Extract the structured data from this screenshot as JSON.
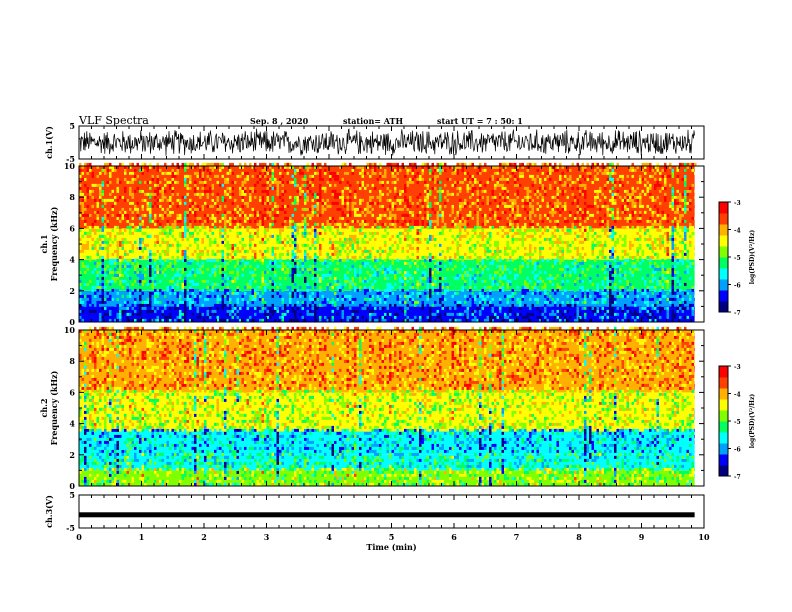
{
  "header": {
    "title": "VLF Spectra",
    "date": "Sep. 8 , 2020",
    "station": "station= ATH",
    "start": "start UT = 7 : 50: 1"
  },
  "chart_data": [
    {
      "type": "line",
      "panel": "ch1-waveform",
      "ylabel": "ch.1(V)",
      "ylim": [
        -5,
        5
      ],
      "yticks": [
        "5",
        "-5"
      ],
      "xlim": [
        0,
        10
      ],
      "description_values": "broadband noise waveform, amplitude about ±3 V"
    },
    {
      "type": "heatmap",
      "panel": "ch1-spectrogram",
      "ylabel_line1": "ch.1",
      "ylabel_line2": "Frequency (kHz)",
      "ylim": [
        0,
        10
      ],
      "yticks": [
        "0",
        "2",
        "4",
        "6",
        "8",
        "10"
      ],
      "xlim": [
        0,
        10
      ],
      "colorbar": {
        "label": "log(PSD)(V²/Hz)",
        "range": [
          -7,
          -3
        ],
        "ticks": [
          "-3",
          "-4",
          "-5",
          "-6",
          "-7"
        ]
      },
      "bands_khz_log_psd": [
        {
          "from": 0,
          "to": 1,
          "value": -6.3
        },
        {
          "from": 1,
          "to": 2,
          "value": -5.9
        },
        {
          "from": 2,
          "to": 4,
          "value": -5.3
        },
        {
          "from": 4,
          "to": 6,
          "value": -4.5
        },
        {
          "from": 6,
          "to": 10,
          "value": -3.8
        }
      ]
    },
    {
      "type": "heatmap",
      "panel": "ch2-spectrogram",
      "ylabel_line1": "ch.2",
      "ylabel_line2": "Frequency (kHz)",
      "ylim": [
        0,
        10
      ],
      "yticks": [
        "0",
        "2",
        "4",
        "6",
        "8",
        "10"
      ],
      "xlim": [
        0,
        10
      ],
      "colorbar": {
        "label": "log(PSD)(V²/Hz)",
        "range": [
          -7,
          -3
        ],
        "ticks": [
          "-3",
          "-4",
          "-5",
          "-6",
          "-7"
        ]
      },
      "bands_khz_log_psd": [
        {
          "from": 0,
          "to": 1,
          "value": -4.8
        },
        {
          "from": 1,
          "to": 2,
          "value": -5.4
        },
        {
          "from": 2,
          "to": 3.5,
          "value": -5.8
        },
        {
          "from": 3.5,
          "to": 6,
          "value": -4.6
        },
        {
          "from": 6,
          "to": 10,
          "value": -3.9
        }
      ]
    },
    {
      "type": "line",
      "panel": "ch3-waveform",
      "ylabel": "ch.3(V)",
      "ylim": [
        -5,
        5
      ],
      "yticks": [
        "5",
        "-5"
      ],
      "xlim": [
        0,
        10
      ],
      "xlabel": "Time (min)",
      "xticks": [
        "0",
        "1",
        "2",
        "3",
        "4",
        "5",
        "6",
        "7",
        "8",
        "9",
        "10"
      ],
      "level_v": -1.0,
      "data_end_min": 9.85
    }
  ],
  "colors": {
    "scale": [
      "#000080",
      "#0000ff",
      "#00a0ff",
      "#00ffff",
      "#00ff60",
      "#80ff00",
      "#ffff00",
      "#ffb000",
      "#ff4000",
      "#ff0000",
      "#ffffff"
    ]
  }
}
